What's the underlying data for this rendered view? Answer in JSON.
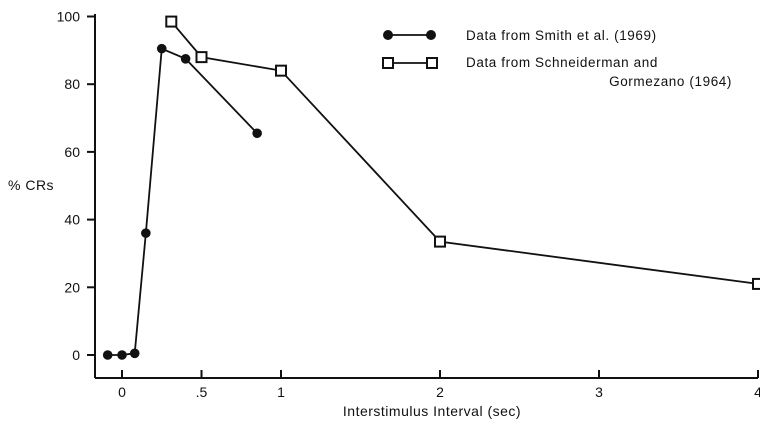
{
  "chart_data": {
    "type": "line",
    "title": "",
    "xlabel": "Interstimulus  Interval   (sec)",
    "ylabel": "% CRs",
    "xlim": [
      -0.17,
      4
    ],
    "ylim": [
      -7,
      100
    ],
    "x_ticks": [
      0,
      0.5,
      1,
      2,
      3,
      4
    ],
    "x_tick_labels": [
      "0",
      ".5",
      "1",
      "2",
      "3",
      "4"
    ],
    "y_ticks": [
      0,
      20,
      40,
      60,
      80,
      100
    ],
    "y_tick_labels": [
      "0",
      "20",
      "40",
      "60",
      "80",
      "100"
    ],
    "grid": false,
    "legend_position": "top-right",
    "series": [
      {
        "name": "Data from Smith et al. (1969)",
        "marker": "filled-circle",
        "color": "#111111",
        "x": [
          -0.09,
          0,
          0.08,
          0.15,
          0.25,
          0.4,
          0.85
        ],
        "y": [
          0,
          0,
          0.5,
          36,
          90.5,
          87.5,
          65.5
        ]
      },
      {
        "name": "Data from Schneiderman and Gormezano (1964)",
        "legend_lines": [
          "Data from Schneiderman and",
          "Gormezano (1964)"
        ],
        "marker": "open-square",
        "color": "#111111",
        "x": [
          0.31,
          0.5,
          1,
          2,
          4
        ],
        "y": [
          98.5,
          88,
          84,
          33.5,
          21
        ]
      }
    ]
  }
}
